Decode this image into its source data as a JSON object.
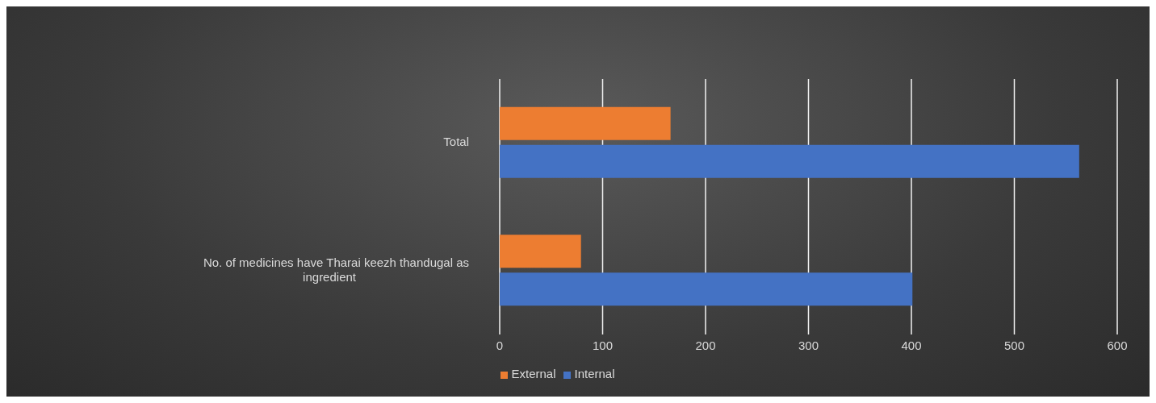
{
  "chart_data": {
    "type": "bar",
    "orientation": "horizontal",
    "categories": [
      "Total",
      "No. of medicines have Tharai keezh thandugal as ingredient"
    ],
    "series": [
      {
        "name": "External",
        "color": "#ed7d31",
        "values": [
          166,
          79
        ]
      },
      {
        "name": "Internal",
        "color": "#4472c4",
        "values": [
          563,
          401
        ]
      }
    ],
    "xlim": [
      0,
      600
    ],
    "xticks": [
      0,
      100,
      200,
      300,
      400,
      500,
      600
    ],
    "grid": "x",
    "legend": "bottom"
  }
}
